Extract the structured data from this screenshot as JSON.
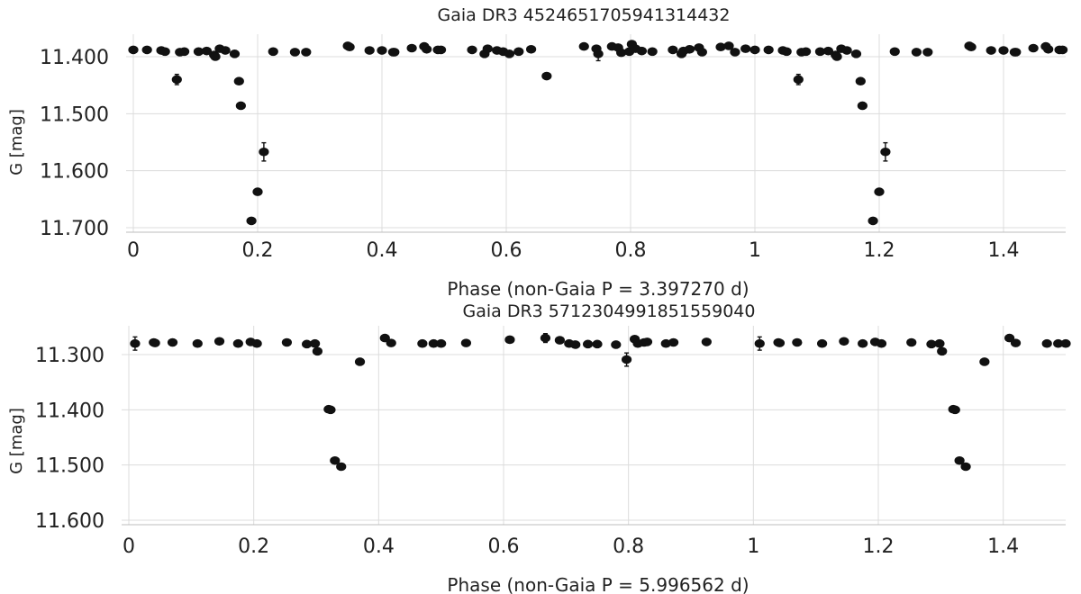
{
  "chart_data": [
    {
      "type": "scatter",
      "title": "Gaia DR3 4524651705941314432",
      "xlabel": "Phase (non-Gaia P = 3.397270 d)",
      "ylabel": "G [mag]",
      "xlim": [
        0,
        1.5
      ],
      "ylim": [
        11.37,
        11.71
      ],
      "y_inverted": true,
      "grid": true,
      "xticks": [
        0,
        0.2,
        0.4,
        0.6,
        0.8,
        1,
        1.2,
        1.4
      ],
      "xtick_labels": [
        "0",
        "0.2",
        "0.4",
        "0.6",
        "0.8",
        "1",
        "1.2",
        "1.4"
      ],
      "yticks": [
        11.4,
        11.5,
        11.6,
        11.7
      ],
      "ytick_labels": [
        "11.400",
        "11.500",
        "11.600",
        "11.700"
      ],
      "points": [
        {
          "x": 0.0,
          "y": 11.388
        },
        {
          "x": 0.022,
          "y": 11.388
        },
        {
          "x": 0.045,
          "y": 11.389
        },
        {
          "x": 0.051,
          "y": 11.391
        },
        {
          "x": 0.07,
          "y": 11.44,
          "err": 0.009
        },
        {
          "x": 0.075,
          "y": 11.392
        },
        {
          "x": 0.082,
          "y": 11.391
        },
        {
          "x": 0.105,
          "y": 11.391
        },
        {
          "x": 0.118,
          "y": 11.39
        },
        {
          "x": 0.13,
          "y": 11.397
        },
        {
          "x": 0.132,
          "y": 11.4
        },
        {
          "x": 0.139,
          "y": 11.386
        },
        {
          "x": 0.148,
          "y": 11.389
        },
        {
          "x": 0.163,
          "y": 11.395
        },
        {
          "x": 0.17,
          "y": 11.443
        },
        {
          "x": 0.173,
          "y": 11.486
        },
        {
          "x": 0.19,
          "y": 11.688
        },
        {
          "x": 0.2,
          "y": 11.637
        },
        {
          "x": 0.21,
          "y": 11.567,
          "err": 0.016
        },
        {
          "x": 0.225,
          "y": 11.391
        },
        {
          "x": 0.26,
          "y": 11.392
        },
        {
          "x": 0.278,
          "y": 11.392
        },
        {
          "x": 0.345,
          "y": 11.381
        },
        {
          "x": 0.348,
          "y": 11.383
        },
        {
          "x": 0.38,
          "y": 11.389
        },
        {
          "x": 0.4,
          "y": 11.389
        },
        {
          "x": 0.418,
          "y": 11.392
        },
        {
          "x": 0.42,
          "y": 11.392
        },
        {
          "x": 0.448,
          "y": 11.385
        },
        {
          "x": 0.468,
          "y": 11.382
        },
        {
          "x": 0.472,
          "y": 11.387
        },
        {
          "x": 0.49,
          "y": 11.388
        },
        {
          "x": 0.495,
          "y": 11.388
        },
        {
          "x": 0.545,
          "y": 11.388
        },
        {
          "x": 0.565,
          "y": 11.395
        },
        {
          "x": 0.57,
          "y": 11.386
        },
        {
          "x": 0.585,
          "y": 11.389
        },
        {
          "x": 0.595,
          "y": 11.391
        },
        {
          "x": 0.605,
          "y": 11.395
        },
        {
          "x": 0.62,
          "y": 11.391
        },
        {
          "x": 0.64,
          "y": 11.387
        },
        {
          "x": 0.665,
          "y": 11.434
        },
        {
          "x": 0.725,
          "y": 11.382
        },
        {
          "x": 0.745,
          "y": 11.386
        },
        {
          "x": 0.748,
          "y": 11.395,
          "err": 0.012
        },
        {
          "x": 0.77,
          "y": 11.382
        },
        {
          "x": 0.78,
          "y": 11.384
        },
        {
          "x": 0.785,
          "y": 11.393
        },
        {
          "x": 0.798,
          "y": 11.391
        },
        {
          "x": 0.802,
          "y": 11.378
        },
        {
          "x": 0.808,
          "y": 11.386
        },
        {
          "x": 0.818,
          "y": 11.39
        },
        {
          "x": 0.835,
          "y": 11.391
        },
        {
          "x": 0.868,
          "y": 11.388
        },
        {
          "x": 0.882,
          "y": 11.395
        },
        {
          "x": 0.885,
          "y": 11.39
        },
        {
          "x": 0.895,
          "y": 11.387
        },
        {
          "x": 0.91,
          "y": 11.384
        },
        {
          "x": 0.915,
          "y": 11.392
        },
        {
          "x": 0.945,
          "y": 11.383
        },
        {
          "x": 0.958,
          "y": 11.381
        },
        {
          "x": 0.968,
          "y": 11.392
        },
        {
          "x": 0.985,
          "y": 11.386
        },
        {
          "x": 1.0,
          "y": 11.388
        },
        {
          "x": 1.022,
          "y": 11.388
        },
        {
          "x": 1.045,
          "y": 11.389
        },
        {
          "x": 1.051,
          "y": 11.391
        },
        {
          "x": 1.07,
          "y": 11.44,
          "err": 0.009
        },
        {
          "x": 1.075,
          "y": 11.392
        },
        {
          "x": 1.082,
          "y": 11.391
        },
        {
          "x": 1.105,
          "y": 11.391
        },
        {
          "x": 1.118,
          "y": 11.39
        },
        {
          "x": 1.13,
          "y": 11.397
        },
        {
          "x": 1.132,
          "y": 11.4
        },
        {
          "x": 1.139,
          "y": 11.386
        },
        {
          "x": 1.148,
          "y": 11.389
        },
        {
          "x": 1.163,
          "y": 11.395
        },
        {
          "x": 1.17,
          "y": 11.443
        },
        {
          "x": 1.173,
          "y": 11.486
        },
        {
          "x": 1.19,
          "y": 11.688
        },
        {
          "x": 1.2,
          "y": 11.637
        },
        {
          "x": 1.21,
          "y": 11.567,
          "err": 0.016
        },
        {
          "x": 1.225,
          "y": 11.391
        },
        {
          "x": 1.26,
          "y": 11.392
        },
        {
          "x": 1.278,
          "y": 11.392
        },
        {
          "x": 1.345,
          "y": 11.381
        },
        {
          "x": 1.348,
          "y": 11.383
        },
        {
          "x": 1.38,
          "y": 11.389
        },
        {
          "x": 1.4,
          "y": 11.389
        },
        {
          "x": 1.418,
          "y": 11.392
        },
        {
          "x": 1.42,
          "y": 11.392
        },
        {
          "x": 1.448,
          "y": 11.385
        },
        {
          "x": 1.468,
          "y": 11.382
        },
        {
          "x": 1.472,
          "y": 11.387
        },
        {
          "x": 1.49,
          "y": 11.388
        },
        {
          "x": 1.495,
          "y": 11.388
        }
      ]
    },
    {
      "type": "scatter",
      "title": "Gaia DR3 5712304991851559040",
      "xlabel": "Phase (non-Gaia P = 5.996562 d)",
      "ylabel": "G [mag]",
      "xlim": [
        0,
        1.5
      ],
      "ylim": [
        11.24,
        11.61
      ],
      "y_inverted": true,
      "grid": true,
      "xticks": [
        0,
        0.2,
        0.4,
        0.6,
        0.8,
        1,
        1.2,
        1.4
      ],
      "xtick_labels": [
        "0",
        "0.2",
        "0.4",
        "0.6",
        "0.8",
        "1",
        "1.2",
        "1.4"
      ],
      "yticks": [
        11.3,
        11.4,
        11.5,
        11.6
      ],
      "ytick_labels": [
        "11.300",
        "11.400",
        "11.500",
        "11.600"
      ],
      "points": [
        {
          "x": 0.01,
          "y": 11.28,
          "err": 0.012
        },
        {
          "x": 0.04,
          "y": 11.278
        },
        {
          "x": 0.042,
          "y": 11.279
        },
        {
          "x": 0.07,
          "y": 11.278
        },
        {
          "x": 0.11,
          "y": 11.28
        },
        {
          "x": 0.145,
          "y": 11.276
        },
        {
          "x": 0.175,
          "y": 11.28
        },
        {
          "x": 0.195,
          "y": 11.277
        },
        {
          "x": 0.205,
          "y": 11.28
        },
        {
          "x": 0.253,
          "y": 11.278
        },
        {
          "x": 0.285,
          "y": 11.281
        },
        {
          "x": 0.298,
          "y": 11.28
        },
        {
          "x": 0.302,
          "y": 11.294
        },
        {
          "x": 0.32,
          "y": 11.399
        },
        {
          "x": 0.323,
          "y": 11.4
        },
        {
          "x": 0.33,
          "y": 11.492
        },
        {
          "x": 0.34,
          "y": 11.503
        },
        {
          "x": 0.37,
          "y": 11.313
        },
        {
          "x": 0.41,
          "y": 11.27
        },
        {
          "x": 0.42,
          "y": 11.279
        },
        {
          "x": 0.47,
          "y": 11.28
        },
        {
          "x": 0.488,
          "y": 11.28
        },
        {
          "x": 0.5,
          "y": 11.28
        },
        {
          "x": 0.54,
          "y": 11.279
        },
        {
          "x": 0.61,
          "y": 11.273
        },
        {
          "x": 0.667,
          "y": 11.27,
          "err": 0.008
        },
        {
          "x": 0.69,
          "y": 11.274
        },
        {
          "x": 0.705,
          "y": 11.28
        },
        {
          "x": 0.715,
          "y": 11.282
        },
        {
          "x": 0.735,
          "y": 11.281
        },
        {
          "x": 0.75,
          "y": 11.281
        },
        {
          "x": 0.78,
          "y": 11.282
        },
        {
          "x": 0.797,
          "y": 11.309,
          "err": 0.012
        },
        {
          "x": 0.81,
          "y": 11.272
        },
        {
          "x": 0.815,
          "y": 11.28
        },
        {
          "x": 0.825,
          "y": 11.278
        },
        {
          "x": 0.83,
          "y": 11.277
        },
        {
          "x": 0.86,
          "y": 11.28
        },
        {
          "x": 0.872,
          "y": 11.278
        },
        {
          "x": 0.925,
          "y": 11.277
        },
        {
          "x": 1.01,
          "y": 11.28,
          "err": 0.012
        },
        {
          "x": 1.04,
          "y": 11.278
        },
        {
          "x": 1.042,
          "y": 11.279
        },
        {
          "x": 1.07,
          "y": 11.278
        },
        {
          "x": 1.11,
          "y": 11.28
        },
        {
          "x": 1.145,
          "y": 11.276
        },
        {
          "x": 1.175,
          "y": 11.28
        },
        {
          "x": 1.195,
          "y": 11.277
        },
        {
          "x": 1.205,
          "y": 11.28
        },
        {
          "x": 1.253,
          "y": 11.278
        },
        {
          "x": 1.285,
          "y": 11.281
        },
        {
          "x": 1.298,
          "y": 11.28
        },
        {
          "x": 1.302,
          "y": 11.294
        },
        {
          "x": 1.32,
          "y": 11.399
        },
        {
          "x": 1.323,
          "y": 11.4
        },
        {
          "x": 1.33,
          "y": 11.492
        },
        {
          "x": 1.34,
          "y": 11.503
        },
        {
          "x": 1.37,
          "y": 11.313
        },
        {
          "x": 1.41,
          "y": 11.27
        },
        {
          "x": 1.42,
          "y": 11.279
        },
        {
          "x": 1.47,
          "y": 11.28
        },
        {
          "x": 1.488,
          "y": 11.28
        },
        {
          "x": 1.5,
          "y": 11.28
        }
      ]
    }
  ]
}
